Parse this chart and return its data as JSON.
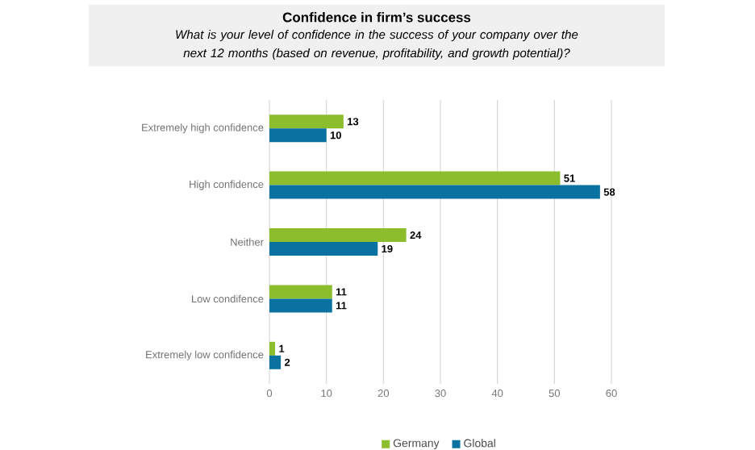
{
  "chart_data": {
    "type": "bar",
    "orientation": "horizontal",
    "title": "Confidence in firm’s success",
    "subtitle": "What is your level of confidence in the success of your company over the next 12 months (based on revenue, profitability, and growth potential)?",
    "categories": [
      "Extremely high confidence",
      "High confidence",
      "Neither",
      "Low condifence",
      "Extremely low confidence"
    ],
    "series": [
      {
        "name": "Germany",
        "color": "#8cbd2c",
        "values": [
          13,
          51,
          24,
          11,
          1
        ]
      },
      {
        "name": "Global",
        "color": "#0a72a0",
        "values": [
          10,
          58,
          19,
          11,
          2
        ]
      }
    ],
    "xlim": [
      0,
      60
    ],
    "xticks": [
      0,
      10,
      20,
      30,
      40,
      50,
      60
    ],
    "grid": "x",
    "legend": "bottom",
    "data_labels": true
  }
}
